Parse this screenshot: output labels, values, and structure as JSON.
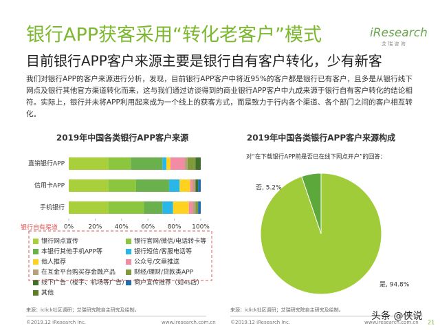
{
  "header": {
    "title": "银行APP获客采用“转化老客户”模式",
    "logo": "iResearch",
    "logo_sub": "艾 瑞 咨 询",
    "subtitle": "目前银行APP客户来源主要是银行自有客户转化，少有新客"
  },
  "body": [
    "我们对银行APP的客户来源进行分析，发现，目前银行APP客户中将近95%的客户都是银行已有客户，且多是从银行线下",
    "网点及银行其他官方渠道转化而来，这与我们通过访谈得到的商业银行APP客户中九成来源于银行自有客户转化的结论相",
    "符。实际上，银行并未将APP利用起来成为一个线上的获客方式，而是致力于行内各个渠道、各个部门之间的客户相互转",
    "化。"
  ],
  "chart_data": [
    {
      "type": "stacked-bar",
      "orientation": "horizontal",
      "title": "2019年中国各类银行APP客户来源",
      "categories": [
        "直销银行APP",
        "信用卡APP",
        "手机银行"
      ],
      "annotation": "银行自有渠道",
      "xlim": [
        0,
        100
      ],
      "xticks": [
        {
          "value": 0,
          "label": "0%"
        },
        {
          "value": 20,
          "label": "20%"
        },
        {
          "value": 40,
          "label": "40%"
        },
        {
          "value": 60,
          "label": "60%"
        },
        {
          "value": 80,
          "label": "80%"
        },
        {
          "value": 100,
          "label": "100%"
        }
      ],
      "series": [
        {
          "name": "银行网点宣传",
          "color": "#a9cf3b",
          "values": [
            30,
            30,
            30
          ]
        },
        {
          "name": "银行官网/微信/电话转卡等",
          "color": "#8cc63f",
          "values": [
            17,
            21,
            27
          ]
        },
        {
          "name": "本银行其他手机APP等",
          "color": "#6ab04c",
          "values": [
            24,
            25,
            14
          ]
        },
        {
          "name": "银行短信/客服电话等",
          "color": "#2ab7e8",
          "values": [
            3,
            8,
            8
          ]
        },
        {
          "name": "他人推荐",
          "color": "#ffd21f",
          "values": [
            3,
            8,
            12
          ]
        },
        {
          "name": "公众号/文章推送",
          "color": "#f28ca5",
          "values": [
            11,
            2,
            3
          ]
        },
        {
          "name": "在互金平台购买存金融产品",
          "color": "#b5a27a",
          "values": [
            2,
            2,
            2
          ]
        },
        {
          "name": "财经/理财/贷款类APP",
          "color": "#7f9a3a",
          "values": [
            6,
            0,
            2
          ]
        },
        {
          "name": "线下广告（楼宇、机场等广告）",
          "color": "#3f6f2a",
          "values": [
            4,
            2,
            0
          ]
        },
        {
          "name": "商户宣传推荐（如4s店）",
          "color": "#1f6fb5",
          "values": [
            0,
            2,
            2
          ]
        },
        {
          "name": "其他",
          "color": "#5e7f2a",
          "values": [
            0,
            0,
            0
          ]
        }
      ]
    },
    {
      "type": "pie",
      "title": "2019年中国各类银行APP客户来源构成",
      "subtitle": "对“在下载银行APP前是否已在线下网点开户”的回答：",
      "categories": [
        "是",
        "否"
      ],
      "values": [
        94.8,
        5.2
      ],
      "value_labels": [
        "是, 94.8%",
        "否, 5.2%"
      ],
      "colors": [
        "#a0cc3a",
        "#5da83a"
      ]
    }
  ],
  "source": "来源：iclick社区调研；艾瑞研究院自主研究及绘制。",
  "footer": {
    "copyright": "©2019.12 iResearch Inc.",
    "url": "www.iresearch.com.cn",
    "page": "21",
    "watermark": "头条 @侠说"
  }
}
